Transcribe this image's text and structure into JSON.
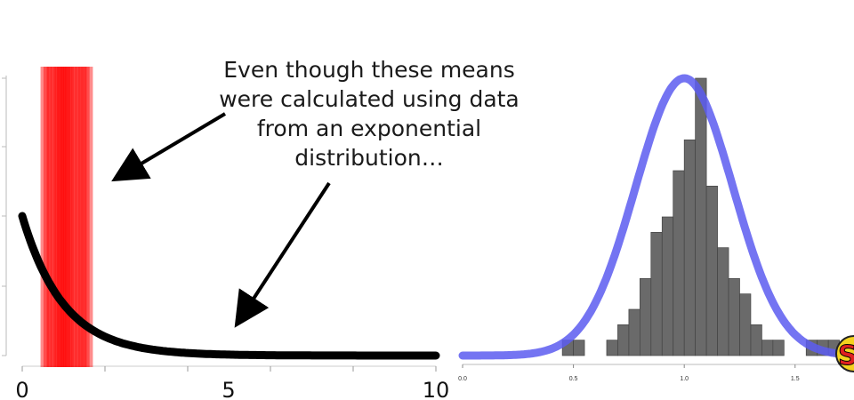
{
  "annotation": {
    "lines": [
      "Even though these means",
      "were calculated using data",
      "from an exponential",
      "distribution…"
    ]
  },
  "colors": {
    "mean_bars": "#ff0000",
    "density_curve": "#000000",
    "histogram_fill": "#6a6a6a",
    "normal_curve": "#5c5cf0",
    "arrow": "#000000"
  },
  "logo": {
    "text": "S"
  },
  "chart_data": [
    {
      "type": "line",
      "title": "",
      "xlabel": "",
      "ylabel": "",
      "x_ticks": [
        "0",
        "5",
        "10"
      ],
      "xlim": [
        0,
        10
      ],
      "grid": false,
      "series": [
        {
          "function": "exponential density",
          "rate": 1,
          "x": [
            0,
            10
          ]
        }
      ],
      "mean_markers": {
        "description_values": [
          0.55,
          0.62,
          0.7,
          0.78,
          0.85,
          0.9,
          0.95,
          1.0,
          1.05,
          1.1,
          1.15,
          1.22,
          1.3,
          1.38,
          1.45,
          1.52,
          1.6
        ]
      }
    },
    {
      "type": "bar",
      "title": "",
      "xlabel": "",
      "ylabel": "",
      "x_ticks": [
        "0.0",
        "0.5",
        "1.0",
        "1.5"
      ],
      "xlim": [
        0,
        1.85
      ],
      "bin_width": 0.05,
      "bins_start": [
        0.45,
        0.5,
        0.55,
        0.6,
        0.65,
        0.7,
        0.75,
        0.8,
        0.85,
        0.9,
        0.95,
        1.0,
        1.05,
        1.1,
        1.15,
        1.2,
        1.25,
        1.3,
        1.35,
        1.4,
        1.45,
        1.5,
        1.55,
        1.6,
        1.65,
        1.7
      ],
      "counts": [
        1,
        1,
        0,
        0,
        1,
        2,
        3,
        5,
        8,
        9,
        12,
        14,
        18,
        11,
        7,
        5,
        4,
        2,
        1,
        1,
        0,
        0,
        1,
        1,
        1,
        0
      ],
      "normal_curve": {
        "mean": 1.0,
        "sd": 0.22,
        "peak_count": 18
      }
    }
  ]
}
